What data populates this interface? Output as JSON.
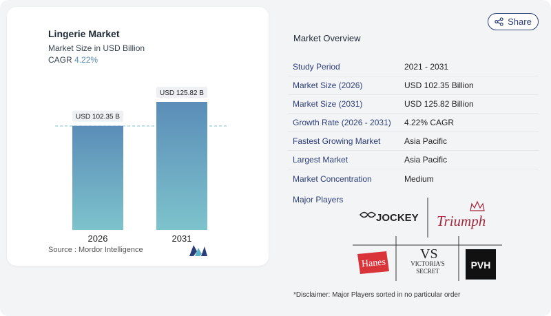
{
  "chart": {
    "title": "Lingerie Market",
    "subtitle": "Market Size in USD Billion",
    "cagr_label": "CAGR",
    "cagr_value": "4.22%",
    "source": "Source :  Mordor Intelligence"
  },
  "chart_data": {
    "type": "bar",
    "categories": [
      "2026",
      "2031"
    ],
    "values": [
      102.35,
      125.82
    ],
    "value_labels": [
      "USD 102.35 B",
      "USD 125.82 B"
    ],
    "title": "Lingerie Market",
    "subtitle": "Market Size in USD Billion",
    "ylim": [
      0,
      125.82
    ],
    "grid": false,
    "colors": {
      "bar_top": "#5b8db8",
      "bar_bottom": "#7dc3cc",
      "ref_line": "#7dc3cc"
    }
  },
  "share": {
    "label": "Share",
    "icon": "share-icon"
  },
  "overview": {
    "title": "Market Overview",
    "rows": [
      {
        "label": "Study Period",
        "value": "2021 - 2031"
      },
      {
        "label": "Market Size (2026)",
        "value": "USD 102.35 Billion"
      },
      {
        "label": "Market Size (2031)",
        "value": "USD 125.82 Billion"
      },
      {
        "label": "Growth Rate (2026 - 2031)",
        "value": "4.22% CAGR"
      },
      {
        "label": "Fastest Growing Market",
        "value": "Asia Pacific"
      },
      {
        "label": "Largest Market",
        "value": "Asia Pacific"
      },
      {
        "label": "Market Concentration",
        "value": "Medium"
      }
    ]
  },
  "players": {
    "title": "Major Players",
    "jockey": "JOCKEY",
    "triumph": "Triumph",
    "hanes": "Hanes",
    "vs_line1": "VICTORIA'S",
    "vs_line2": "SECRET",
    "pvh": "PVH"
  },
  "disclaimer": "*Disclaimer: Major Players sorted in no particular order",
  "colors": {
    "accent": "#2c3e7a",
    "cagr": "#5b8db8",
    "hanes": "#d9343a",
    "triumph": "#a3283b"
  }
}
